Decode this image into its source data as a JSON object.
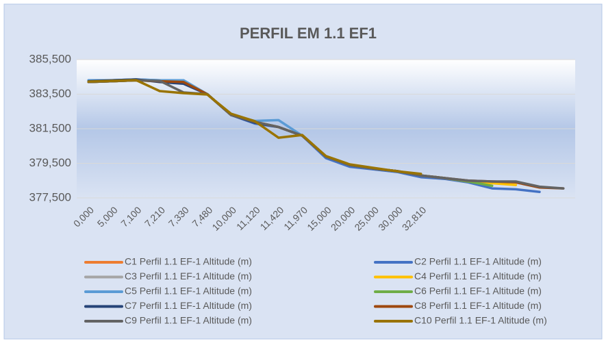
{
  "chart_data": {
    "type": "line",
    "title": "PERFIL EM 1.1 EF1",
    "categories": [
      "0,000",
      "5,000",
      "7,100",
      "7,210",
      "7,330",
      "7,480",
      "10,000",
      "11,120",
      "11,420",
      "11,970",
      "15,000",
      "20,000",
      "25,000",
      "30,000",
      "32,810",
      null,
      null,
      null,
      null,
      null,
      null
    ],
    "ylim": [
      377.5,
      385.5
    ],
    "yticks": [
      {
        "value": 377.5,
        "label": "377,500"
      },
      {
        "value": 379.5,
        "label": "379,500"
      },
      {
        "value": 381.5,
        "label": "381,500"
      },
      {
        "value": 383.5,
        "label": "383,500"
      },
      {
        "value": 385.5,
        "label": "385,500"
      }
    ],
    "grid": true,
    "legend": "bottom",
    "series": [
      {
        "name": "C1 Perfil 1.1 EF-1 Altitude (m)",
        "color": "#ed7d31",
        "values": [
          384.2,
          384.25,
          384.3,
          384.25,
          384.2,
          383.5,
          382.3,
          381.9,
          381.6,
          381.1,
          379.9,
          379.4,
          379.2,
          379.05,
          378.8,
          null,
          null,
          null,
          null,
          null,
          null
        ]
      },
      {
        "name": "C2 Perfil 1.1 EF-1 Altitude (m)",
        "color": "#4472c4",
        "values": [
          384.3,
          384.3,
          384.35,
          384.3,
          384.3,
          383.5,
          382.3,
          381.8,
          381.6,
          381.1,
          379.8,
          379.3,
          379.15,
          379.0,
          378.7,
          378.6,
          378.4,
          378.05,
          378.0,
          377.85,
          null
        ]
      },
      {
        "name": "C3 Perfil 1.1 EF-1 Altitude (m)",
        "color": "#a5a5a5",
        "values": [
          384.2,
          384.25,
          384.3,
          384.25,
          384.2,
          383.5,
          382.3,
          381.9,
          381.6,
          381.1,
          379.9,
          379.4,
          379.2,
          379.05,
          378.8,
          null,
          null,
          null,
          null,
          null,
          null
        ]
      },
      {
        "name": "C4 Perfil 1.1 EF-1 Altitude (m)",
        "color": "#ffc000",
        "values": [
          384.2,
          384.25,
          384.3,
          384.25,
          384.2,
          383.5,
          382.3,
          381.9,
          381.6,
          381.1,
          379.9,
          379.4,
          379.2,
          379.05,
          378.8,
          378.65,
          378.45,
          378.35,
          378.25,
          null,
          null
        ]
      },
      {
        "name": "C5 Perfil 1.1 EF-1 Altitude (m)",
        "color": "#5b9bd5",
        "values": [
          384.3,
          384.3,
          384.35,
          384.3,
          384.3,
          383.5,
          382.3,
          381.95,
          382.0,
          381.1,
          379.9,
          379.4,
          379.2,
          379.05,
          378.8,
          null,
          null,
          null,
          null,
          null,
          null
        ]
      },
      {
        "name": "C6 Perfil 1.1 EF-1 Altitude (m)",
        "color": "#70ad47",
        "values": [
          384.2,
          384.25,
          384.3,
          384.25,
          384.2,
          383.5,
          382.3,
          381.9,
          381.6,
          381.1,
          379.9,
          379.4,
          379.2,
          379.05,
          378.8,
          378.65,
          378.45,
          378.2,
          null,
          null,
          null
        ]
      },
      {
        "name": "C7 Perfil 1.1 EF-1 Altitude (m)",
        "color": "#264478",
        "values": [
          384.25,
          384.3,
          384.35,
          384.2,
          384.1,
          383.5,
          382.3,
          381.85,
          381.6,
          381.1,
          379.9,
          379.4,
          379.2,
          379.05,
          378.8,
          null,
          null,
          null,
          null,
          null,
          null
        ]
      },
      {
        "name": "C8 Perfil 1.1 EF-1 Altitude (m)",
        "color": "#9e480e",
        "values": [
          384.2,
          384.25,
          384.3,
          384.25,
          384.2,
          383.5,
          382.3,
          381.9,
          381.6,
          381.1,
          379.9,
          379.4,
          379.2,
          379.05,
          378.8,
          378.65,
          378.5,
          378.45,
          378.4,
          378.1,
          378.05
        ]
      },
      {
        "name": "C9 Perfil 1.1 EF-1 Altitude (m)",
        "color": "#636363",
        "values": [
          384.2,
          384.25,
          384.3,
          384.27,
          383.6,
          383.5,
          382.3,
          381.9,
          381.6,
          381.1,
          379.9,
          379.4,
          379.2,
          379.05,
          378.8,
          378.65,
          378.5,
          378.45,
          378.45,
          378.15,
          378.05
        ]
      },
      {
        "name": "C10 Perfil 1.1 EF-1 Altitude (m)",
        "color": "#997300",
        "values": [
          384.23,
          384.27,
          384.31,
          383.68,
          383.56,
          383.48,
          382.37,
          381.94,
          380.98,
          381.14,
          379.92,
          379.44,
          379.24,
          379.04,
          378.89,
          null,
          null,
          null,
          null,
          null,
          null
        ]
      }
    ]
  }
}
